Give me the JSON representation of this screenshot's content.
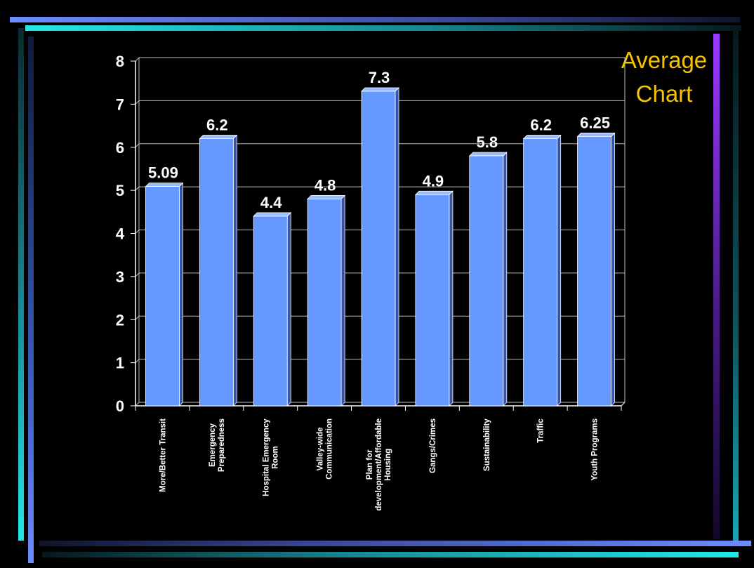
{
  "slide": {
    "title_line1": "Average",
    "title_line2": "Chart",
    "title_color": "#f5c400"
  },
  "chart_data": {
    "type": "bar",
    "title": "Average Chart",
    "categories": [
      "More/Better Transit",
      "Emergency Preparedness",
      "Hospital Emergency Room",
      "Valley-wide Communication",
      "Plan for development/Affordable Housing",
      "Gangs/Crimes",
      "Sustainability",
      "Traffic",
      "Youth Programs"
    ],
    "category_lines": [
      [
        "More/Better Transit"
      ],
      [
        "Emergency",
        "Preparedness"
      ],
      [
        "Hospital Emergency",
        "Room"
      ],
      [
        "Valley-wide",
        "Communication"
      ],
      [
        "Plan for",
        "development/Affordable",
        "Housing"
      ],
      [
        "Gangs/Crimes"
      ],
      [
        "Sustainability"
      ],
      [
        "Traffic"
      ],
      [
        "Youth Programs"
      ]
    ],
    "values": [
      5.09,
      6.2,
      4.4,
      4.8,
      7.3,
      4.9,
      5.8,
      6.2,
      6.25
    ],
    "value_labels": [
      "5.09",
      "6.2",
      "4.4",
      "4.8",
      "7.3",
      "4.9",
      "5.8",
      "6.2",
      "6.25"
    ],
    "ylim": [
      0,
      8
    ],
    "yticks": [
      "0",
      "1",
      "2",
      "3",
      "4",
      "5",
      "6",
      "7",
      "8"
    ],
    "xlabel": "",
    "ylabel": "",
    "grid": true,
    "bar_color": "#6699ff",
    "bar_side_color": "#3355aa",
    "bar_top_color": "#99bbff"
  }
}
